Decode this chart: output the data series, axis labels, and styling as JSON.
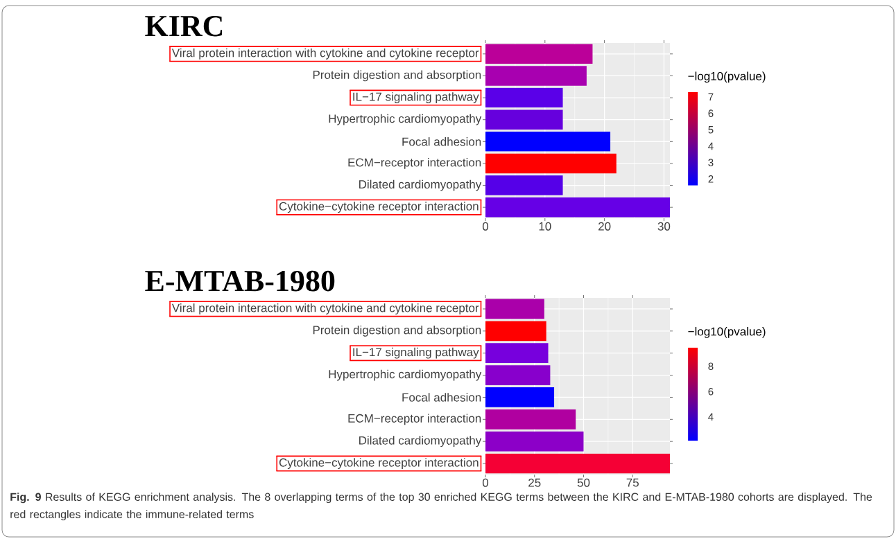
{
  "chart_data": [
    {
      "type": "bar",
      "orientation": "horizontal",
      "title": "KIRC",
      "categories": [
        "Viral protein interaction with cytokine and cytokine receptor",
        "Protein digestion and absorption",
        "IL−17 signaling pathway",
        "Hypertrophic cardiomyopathy",
        "Focal adhesion",
        "ECM−receptor interaction",
        "Dilated cardiomyopathy",
        "Cytokine−cytokine receptor interaction"
      ],
      "values": [
        18,
        17,
        13,
        13,
        21,
        22,
        13,
        31
      ],
      "colors": [
        "#bb0099",
        "#a800b0",
        "#5a00e8",
        "#6600dd",
        "#0000ff",
        "#ff0000",
        "#5500e8",
        "#6600e6"
      ],
      "xlim": [
        0,
        31
      ],
      "xticks": [
        0,
        10,
        20,
        30
      ],
      "grid": true,
      "clabel": "−log10(pvalue)",
      "clim": [
        1.6,
        7.3
      ],
      "cticks": [
        2,
        3,
        4,
        5,
        6,
        7
      ]
    },
    {
      "type": "bar",
      "orientation": "horizontal",
      "title": "E-MTAB-1980",
      "categories": [
        "Viral protein interaction with cytokine and cytokine receptor",
        "Protein digestion and absorption",
        "IL−17 signaling pathway",
        "Hypertrophic cardiomyopathy",
        "Focal adhesion",
        "ECM−receptor interaction",
        "Dilated cardiomyopathy",
        "Cytokine−cytokine receptor interaction"
      ],
      "values": [
        30,
        31,
        32,
        33,
        35,
        46,
        50,
        94
      ],
      "colors": [
        "#aa00aa",
        "#ff0000",
        "#7700dd",
        "#8800cc",
        "#0000ff",
        "#b000a0",
        "#8c00c8",
        "#f50035"
      ],
      "xlim": [
        0,
        94
      ],
      "xticks": [
        0,
        25,
        50,
        75
      ],
      "grid": true,
      "clabel": "−log10(pvalue)",
      "clim": [
        2.1,
        9.5
      ],
      "cticks": [
        4,
        6,
        8
      ],
      "annotations": [
        "**Fig. 9** Results of KEGG enrichment analysis. The 8 overlapping terms of the top 30 enriched KEGG terms between the KIRC and E-MTAB-1980 cohorts are displayed. The red rectangles indicate the immune-related terms"
      ]
    }
  ]
}
